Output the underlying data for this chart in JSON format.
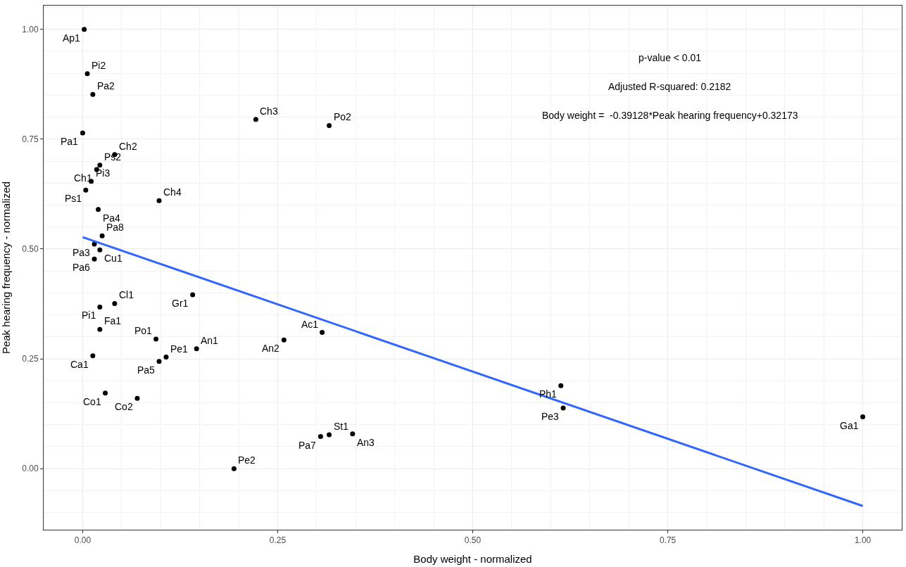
{
  "chart_data": {
    "type": "scatter",
    "xlabel": "Body weight - normalized",
    "ylabel": "Peak hearing frequency - normalized",
    "xlim": [
      -0.05,
      1.05
    ],
    "ylim": [
      -0.139,
      1.054
    ],
    "xticks": [
      {
        "value": 0,
        "label": "0.00"
      },
      0.25,
      {
        "value": 0.5,
        "label": "0.50"
      },
      0.75,
      {
        "value": 1,
        "label": "1.00"
      }
    ],
    "yticks": [
      {
        "value": 0,
        "label": "0.00"
      },
      0.25,
      {
        "value": 0.5,
        "label": "0.50"
      },
      0.75,
      {
        "value": 1,
        "label": "1.00"
      }
    ],
    "grid": true,
    "marker": "circle",
    "series": [
      {
        "color": "#000000",
        "x": [
          0.002,
          0.006,
          0.013,
          0.0,
          0.041,
          0.022,
          0.018,
          0.011,
          0.004,
          0.098,
          0.02,
          0.025,
          0.015,
          0.022,
          0.015,
          0.041,
          0.022,
          0.022,
          0.013,
          0.029,
          0.07,
          0.094,
          0.098,
          0.107,
          0.146,
          0.141,
          0.194,
          0.222,
          0.316,
          0.258,
          0.307,
          0.305,
          0.316,
          0.346,
          0.613,
          0.616,
          1.0
        ],
        "values": [
          1.0,
          0.899,
          0.852,
          0.764,
          0.715,
          0.691,
          0.681,
          0.654,
          0.634,
          0.61,
          0.59,
          0.53,
          0.511,
          0.498,
          0.477,
          0.376,
          0.368,
          0.317,
          0.257,
          0.172,
          0.16,
          0.295,
          0.244,
          0.254,
          0.273,
          0.396,
          0.0,
          0.795,
          0.781,
          0.293,
          0.31,
          0.073,
          0.077,
          0.079,
          0.189,
          0.138,
          0.118
        ]
      },
      {
        "type": "line",
        "color": "#3366ff",
        "x": [
          0,
          1
        ],
        "values": [
          0.527,
          -0.085
        ],
        "marker": "none",
        "line_style": "solid"
      }
    ],
    "annotations": [
      "p-value < 0.01",
      "Adjusted R-squared: 0.2182",
      "Body weight =  -0.39128*Peak hearing frequency+0.32173",
      {
        "text": "Ap1",
        "x": 0.002,
        "y": 1.0
      },
      {
        "text": "Pi2",
        "x": 0.006,
        "y": 0.899
      },
      {
        "text": "Pa2",
        "x": 0.013,
        "y": 0.852
      },
      {
        "text": "Pa1",
        "x": 0.0,
        "y": 0.764
      },
      {
        "text": "Ch2",
        "x": 0.041,
        "y": 0.715
      },
      {
        "text": "Ps2",
        "x": 0.022,
        "y": 0.691
      },
      {
        "text": "Ch1",
        "x": 0.018,
        "y": 0.681
      },
      {
        "text": "Pi3",
        "x": 0.011,
        "y": 0.654
      },
      {
        "text": "Ps1",
        "x": 0.004,
        "y": 0.634
      },
      {
        "text": "Ch4",
        "x": 0.098,
        "y": 0.61
      },
      {
        "text": "Pa4",
        "x": 0.02,
        "y": 0.59
      },
      {
        "text": "Pa8",
        "x": 0.025,
        "y": 0.53
      },
      {
        "text": "Pa3",
        "x": 0.015,
        "y": 0.511
      },
      {
        "text": "Cu1",
        "x": 0.022,
        "y": 0.498
      },
      {
        "text": "Pa6",
        "x": 0.015,
        "y": 0.477
      },
      {
        "text": "Cl1",
        "x": 0.041,
        "y": 0.376
      },
      {
        "text": "Pi1",
        "x": 0.022,
        "y": 0.368
      },
      {
        "text": "Fa1",
        "x": 0.022,
        "y": 0.317
      },
      {
        "text": "Ca1",
        "x": 0.013,
        "y": 0.257
      },
      {
        "text": "Co1",
        "x": 0.029,
        "y": 0.172
      },
      {
        "text": "Co2",
        "x": 0.07,
        "y": 0.16
      },
      {
        "text": "Po1",
        "x": 0.094,
        "y": 0.295
      },
      {
        "text": "Pa5",
        "x": 0.098,
        "y": 0.244
      },
      {
        "text": "Pe1",
        "x": 0.107,
        "y": 0.254
      },
      {
        "text": "An1",
        "x": 0.146,
        "y": 0.273
      },
      {
        "text": "Gr1",
        "x": 0.141,
        "y": 0.396
      },
      {
        "text": "Pe2",
        "x": 0.194,
        "y": 0.0
      },
      {
        "text": "Ch3",
        "x": 0.222,
        "y": 0.795
      },
      {
        "text": "Po2",
        "x": 0.316,
        "y": 0.781
      },
      {
        "text": "An2",
        "x": 0.258,
        "y": 0.293
      },
      {
        "text": "Ac1",
        "x": 0.307,
        "y": 0.31
      },
      {
        "text": "Pa7",
        "x": 0.305,
        "y": 0.073
      },
      {
        "text": "St1",
        "x": 0.316,
        "y": 0.077
      },
      {
        "text": "An3",
        "x": 0.346,
        "y": 0.079
      },
      {
        "text": "Ph1",
        "x": 0.613,
        "y": 0.189
      },
      {
        "text": "Pe3",
        "x": 0.616,
        "y": 0.138
      },
      {
        "text": "Ga1",
        "x": 1.0,
        "y": 0.118
      }
    ]
  }
}
